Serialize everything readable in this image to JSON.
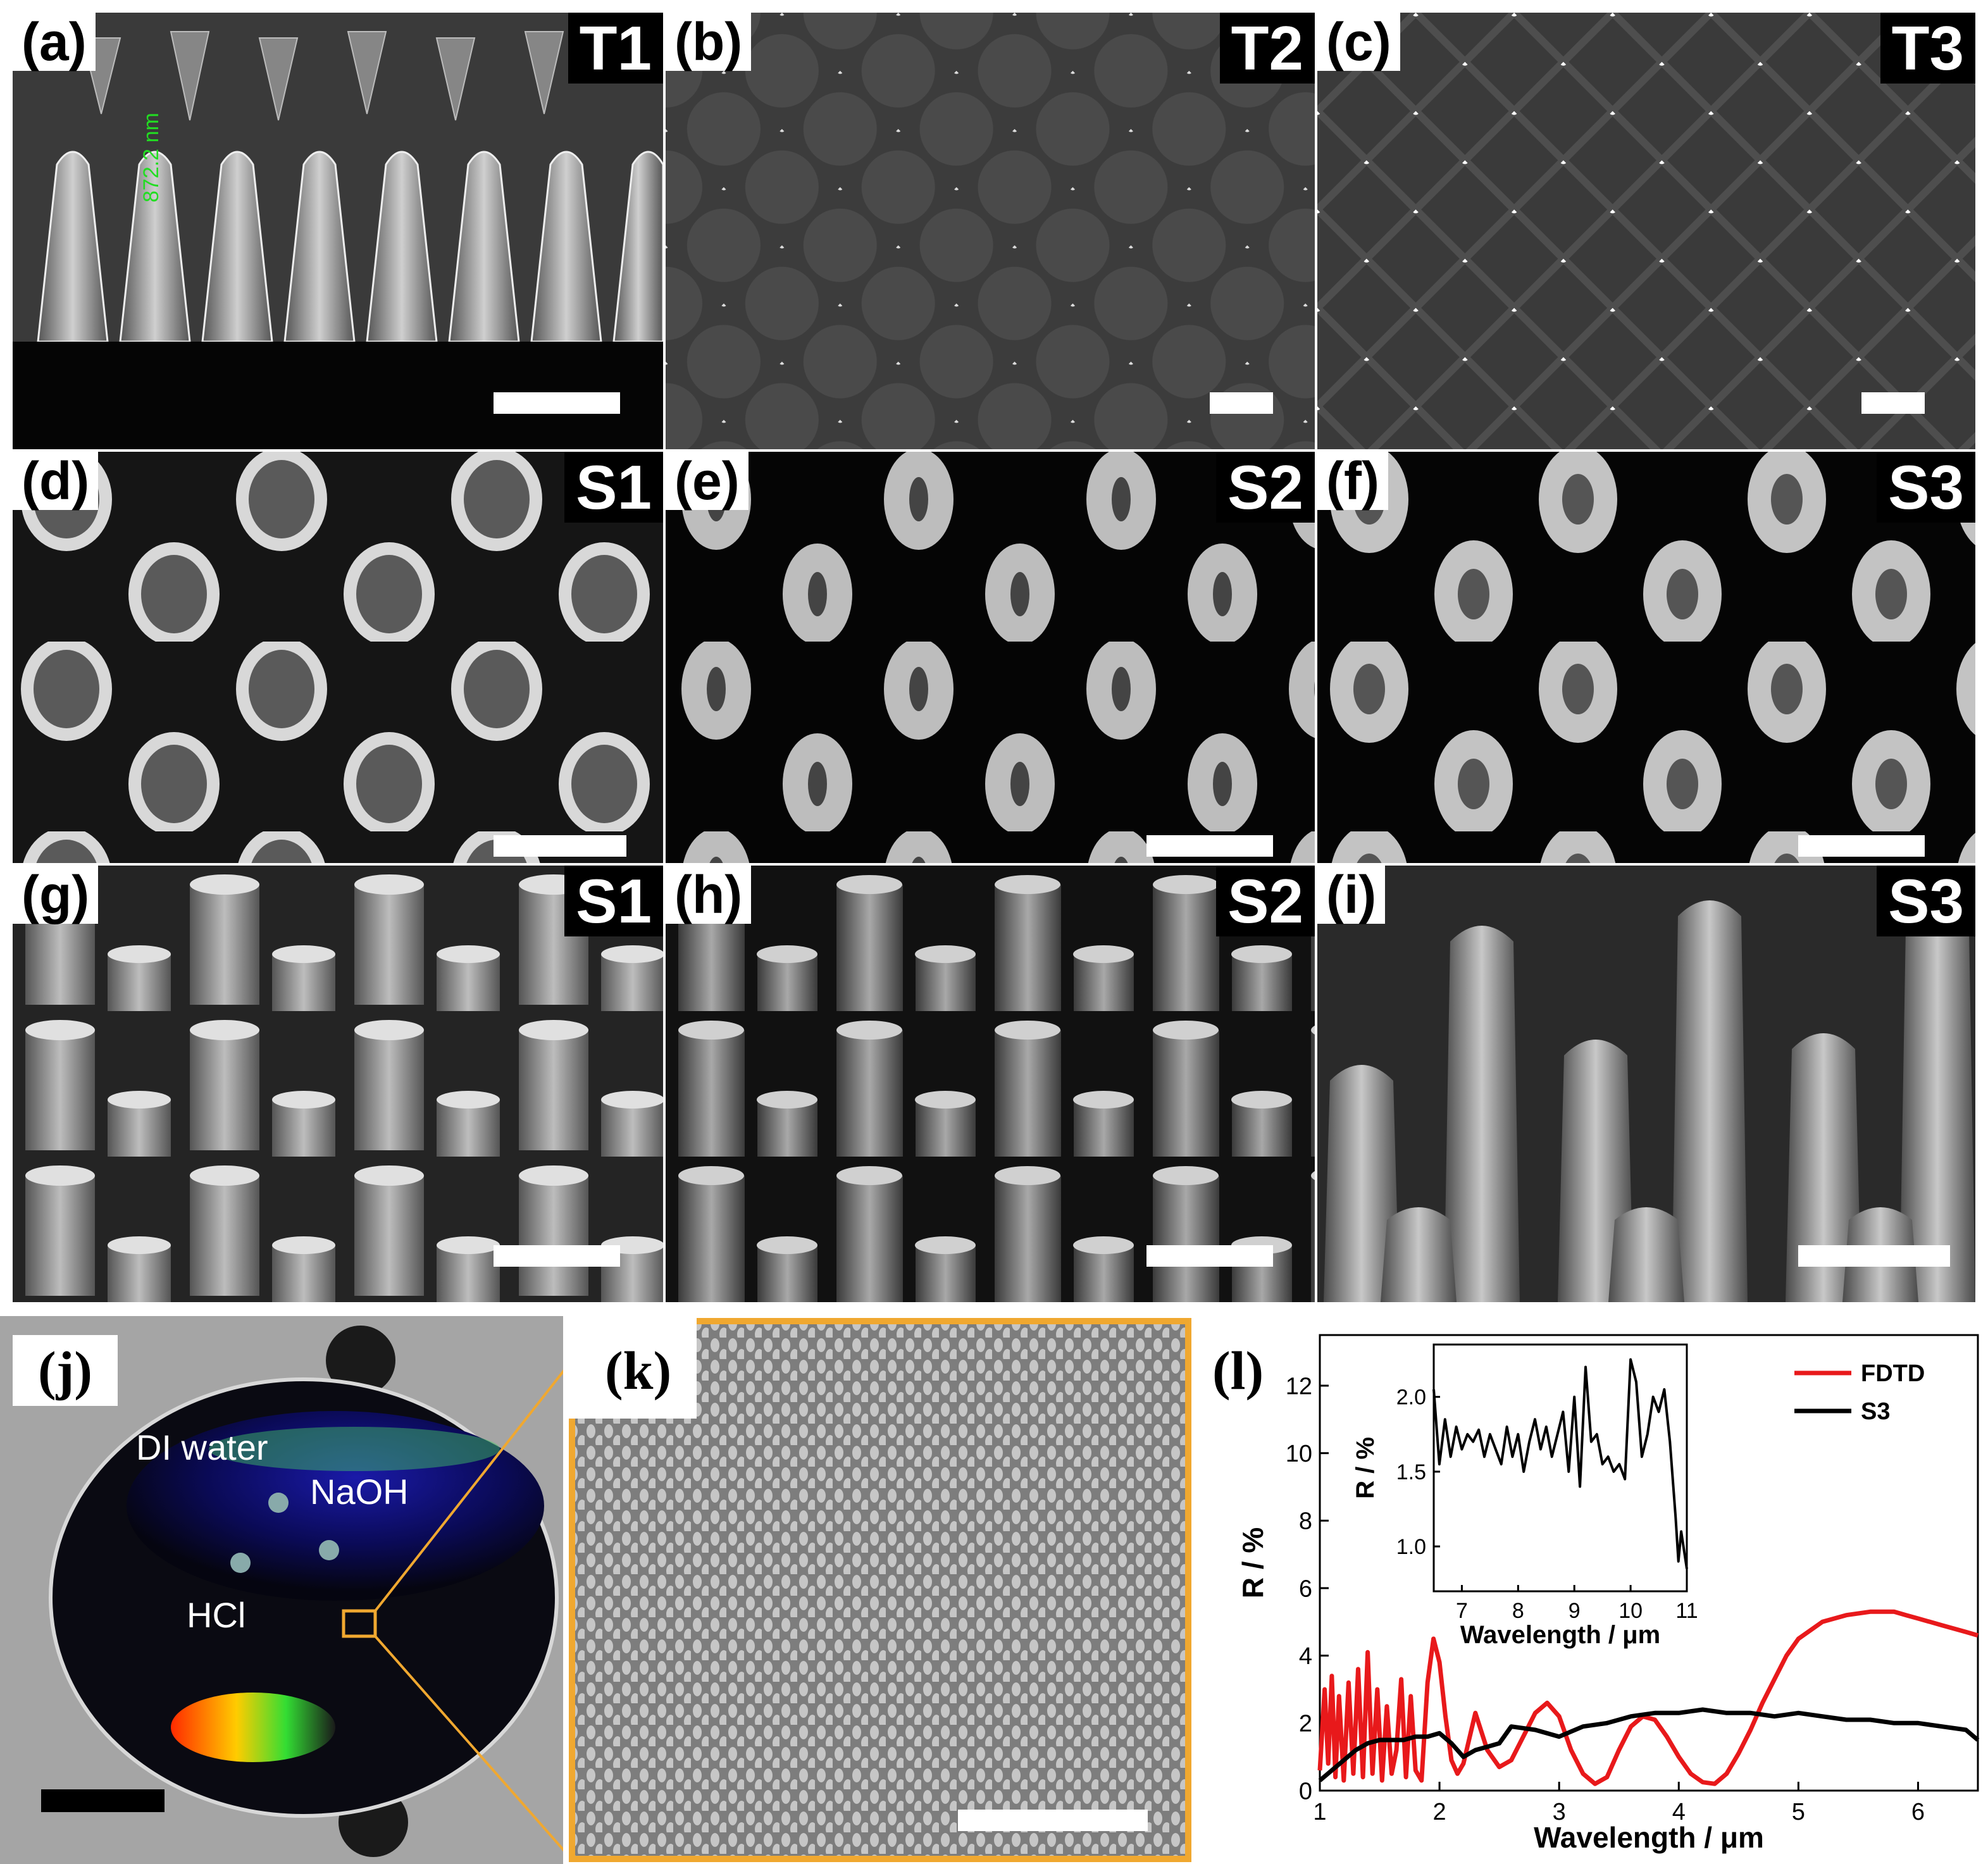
{
  "panels": {
    "a": {
      "label": "(a)",
      "tag": "T1",
      "measurement": "872.2 nm"
    },
    "b": {
      "label": "(b)",
      "tag": "T2"
    },
    "c": {
      "label": "(c)",
      "tag": "T3"
    },
    "d": {
      "label": "(d)",
      "tag": "S1"
    },
    "e": {
      "label": "(e)",
      "tag": "S2"
    },
    "f": {
      "label": "(f)",
      "tag": "S3"
    },
    "g": {
      "label": "(g)",
      "tag": "S1"
    },
    "h": {
      "label": "(h)",
      "tag": "S2"
    },
    "i": {
      "label": "(i)",
      "tag": "S3"
    },
    "j": {
      "label": "(j)",
      "droplets": {
        "water": "DI water",
        "base": "NaOH",
        "acid": "HCl"
      }
    },
    "k": {
      "label": "(k)"
    },
    "l": {
      "label": "(l)"
    }
  },
  "colors": {
    "fdtd": "#e8191b",
    "s3": "#000000",
    "highlight": "#f0a830",
    "measurement": "#22dd22"
  },
  "chart_data": [
    {
      "type": "line",
      "xlabel": "Wavelength / μm",
      "ylabel": "R / %",
      "xlim": [
        1,
        6.5
      ],
      "ylim": [
        0,
        13.5
      ],
      "xticks": [
        "1",
        "2",
        "3",
        "4",
        "5",
        "6"
      ],
      "yticks": [
        "0",
        "2",
        "4",
        "6",
        "8",
        "10",
        "12"
      ],
      "legend_position": "top-right",
      "series": [
        {
          "name": "FDTD",
          "color": "#e8191b",
          "x": [
            1.0,
            1.04,
            1.07,
            1.1,
            1.13,
            1.16,
            1.2,
            1.24,
            1.28,
            1.32,
            1.36,
            1.4,
            1.44,
            1.48,
            1.52,
            1.56,
            1.6,
            1.64,
            1.68,
            1.72,
            1.76,
            1.8,
            1.85,
            1.9,
            1.95,
            2.0,
            2.05,
            2.1,
            2.15,
            2.2,
            2.3,
            2.4,
            2.5,
            2.6,
            2.7,
            2.8,
            2.9,
            3.0,
            3.1,
            3.2,
            3.3,
            3.4,
            3.5,
            3.6,
            3.7,
            3.8,
            3.9,
            4.0,
            4.1,
            4.2,
            4.3,
            4.4,
            4.5,
            4.6,
            4.7,
            4.8,
            4.9,
            5.0,
            5.2,
            5.4,
            5.6,
            5.8,
            5.9,
            6.0,
            6.2,
            6.4,
            6.5
          ],
          "values": [
            0.6,
            3.0,
            0.8,
            3.4,
            0.4,
            2.8,
            0.3,
            3.2,
            0.5,
            3.6,
            0.4,
            4.1,
            0.5,
            3.0,
            0.3,
            2.5,
            0.5,
            1.2,
            3.3,
            0.4,
            2.8,
            0.6,
            0.3,
            3.2,
            4.5,
            3.8,
            2.2,
            0.9,
            0.5,
            0.8,
            2.3,
            1.2,
            0.7,
            0.9,
            1.6,
            2.3,
            2.6,
            2.2,
            1.2,
            0.5,
            0.2,
            0.4,
            1.2,
            1.9,
            2.2,
            2.1,
            1.6,
            1.0,
            0.5,
            0.25,
            0.2,
            0.5,
            1.1,
            1.8,
            2.6,
            3.3,
            4.0,
            4.5,
            5.0,
            5.2,
            5.3,
            5.3,
            5.2,
            5.1,
            4.9,
            4.7,
            4.6
          ]
        },
        {
          "name": "S3",
          "color": "#000000",
          "x": [
            1.0,
            1.1,
            1.2,
            1.3,
            1.4,
            1.5,
            1.6,
            1.7,
            1.8,
            1.9,
            2.0,
            2.1,
            2.2,
            2.3,
            2.4,
            2.5,
            2.6,
            2.8,
            3.0,
            3.2,
            3.4,
            3.6,
            3.8,
            4.0,
            4.2,
            4.4,
            4.6,
            4.8,
            5.0,
            5.2,
            5.4,
            5.6,
            5.8,
            6.0,
            6.2,
            6.4,
            6.5
          ],
          "values": [
            0.3,
            0.6,
            0.9,
            1.2,
            1.4,
            1.5,
            1.5,
            1.5,
            1.6,
            1.6,
            1.7,
            1.4,
            1.0,
            1.2,
            1.3,
            1.4,
            1.9,
            1.8,
            1.6,
            1.9,
            2.0,
            2.2,
            2.3,
            2.3,
            2.4,
            2.3,
            2.3,
            2.2,
            2.3,
            2.2,
            2.1,
            2.1,
            2.0,
            2.0,
            1.9,
            1.8,
            1.5
          ]
        }
      ]
    },
    {
      "type": "line",
      "title": "inset",
      "xlabel": "Wavelength / μm",
      "ylabel": "R / %",
      "xlim": [
        6.5,
        11
      ],
      "ylim": [
        0.7,
        2.35
      ],
      "xticks": [
        "7",
        "8",
        "9",
        "10",
        "11"
      ],
      "yticks": [
        "1.0",
        "1.5",
        "2.0"
      ],
      "series": [
        {
          "name": "S3",
          "color": "#000000",
          "x": [
            6.5,
            6.6,
            6.7,
            6.8,
            6.9,
            7.0,
            7.1,
            7.2,
            7.3,
            7.4,
            7.5,
            7.6,
            7.7,
            7.8,
            7.9,
            8.0,
            8.1,
            8.2,
            8.3,
            8.4,
            8.5,
            8.6,
            8.7,
            8.8,
            8.9,
            9.0,
            9.1,
            9.2,
            9.3,
            9.4,
            9.5,
            9.6,
            9.7,
            9.8,
            9.9,
            10.0,
            10.1,
            10.2,
            10.3,
            10.4,
            10.5,
            10.6,
            10.7,
            10.8,
            10.85,
            10.9,
            11.0
          ],
          "values": [
            2.05,
            1.55,
            1.85,
            1.6,
            1.8,
            1.65,
            1.75,
            1.7,
            1.78,
            1.6,
            1.75,
            1.65,
            1.55,
            1.8,
            1.6,
            1.75,
            1.5,
            1.7,
            1.85,
            1.65,
            1.8,
            1.6,
            1.75,
            1.9,
            1.5,
            2.0,
            1.4,
            2.2,
            1.7,
            1.75,
            1.55,
            1.6,
            1.5,
            1.55,
            1.45,
            2.25,
            2.1,
            1.6,
            1.75,
            2.0,
            1.9,
            2.05,
            1.7,
            1.2,
            0.9,
            1.1,
            0.85
          ]
        }
      ]
    }
  ],
  "legend": {
    "fdtd": "FDTD",
    "s3": "S3"
  }
}
